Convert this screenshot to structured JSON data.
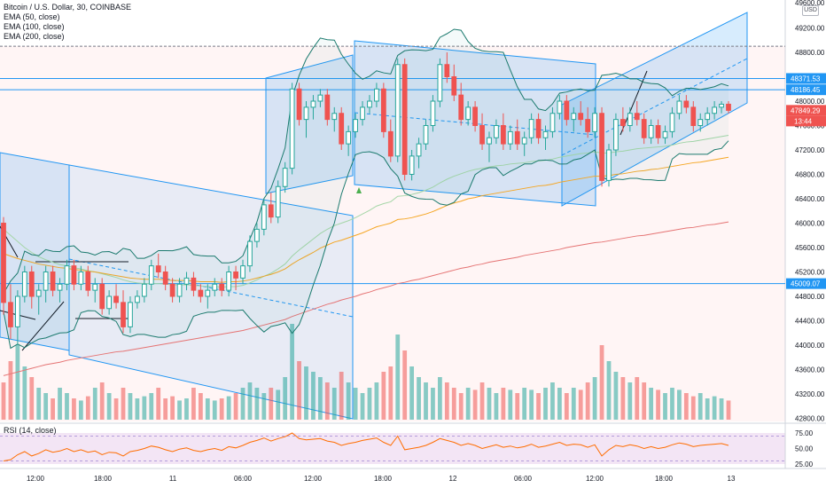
{
  "legend": {
    "title": "Bitcoin / U.S. Dollar, 30, COINBASE",
    "ema50": "EMA (50, close)",
    "ema100": "EMA (100, close)",
    "ema200": "EMA (200, close)"
  },
  "rsi": {
    "label": "RSI (14, close)"
  },
  "currency_badge": "USD",
  "colors": {
    "up": "#26a69a",
    "down": "#ef5350",
    "ema50": "#a5d6a7",
    "ema100": "#f5a623",
    "ema200": "#e57373",
    "channel": "#2196f3",
    "rsi_line": "#ff6d00",
    "rsi_band": "#e1bee7"
  },
  "chart_data": {
    "type": "candlestick",
    "y_axis_ticks": [
      42800,
      43200,
      43600,
      44000,
      44400,
      44800,
      45200,
      45600,
      46000,
      46400,
      46800,
      47200,
      47600,
      48000,
      48400,
      48800,
      49200,
      49600
    ],
    "y_axis_top_label": "49600.00",
    "x_axis_ticks": [
      "12:00",
      "18:00",
      "11",
      "06:00",
      "12:00",
      "18:00",
      "12",
      "06:00",
      "12:00",
      "18:00",
      "13"
    ],
    "price_labels": [
      {
        "value": 48371.53,
        "text": "48371.53",
        "color": "#2196f3"
      },
      {
        "value": 48186.45,
        "text": "48186.45",
        "color": "#2196f3"
      },
      {
        "value": 47849.29,
        "text": "47849.29",
        "color": "#ef5350"
      },
      {
        "value": 45009.07,
        "text": "45009.07",
        "color": "#2196f3"
      }
    ],
    "countdown": "13:44",
    "horizontal_lines": [
      48900,
      48371.53,
      48186.45,
      45009.07
    ],
    "rsi_ticks": [
      "75.00",
      "50.00",
      "25.00"
    ],
    "rsi_band": [
      30,
      70
    ],
    "candles": [
      [
        46000,
        46100,
        44500,
        44700
      ],
      [
        44700,
        45000,
        44100,
        44300
      ],
      [
        44300,
        44900,
        44000,
        44800
      ],
      [
        44800,
        45300,
        44700,
        45200
      ],
      [
        45200,
        45300,
        44600,
        44800
      ],
      [
        44800,
        45000,
        44500,
        44900
      ],
      [
        44900,
        45300,
        44700,
        45200
      ],
      [
        45200,
        45300,
        44800,
        44900
      ],
      [
        44900,
        45100,
        44700,
        45000
      ],
      [
        45000,
        45400,
        44900,
        45300
      ],
      [
        45300,
        45400,
        44900,
        45000
      ],
      [
        45000,
        45300,
        44900,
        45200
      ],
      [
        45200,
        45300,
        44800,
        44900
      ],
      [
        44900,
        45100,
        44700,
        45000
      ],
      [
        45000,
        45100,
        44500,
        44600
      ],
      [
        44600,
        44900,
        44500,
        44800
      ],
      [
        44800,
        45000,
        44600,
        44700
      ],
      [
        44700,
        44900,
        44200,
        44300
      ],
      [
        44300,
        44800,
        44200,
        44700
      ],
      [
        44700,
        44900,
        44600,
        44800
      ],
      [
        44800,
        45100,
        44700,
        45000
      ],
      [
        45000,
        45400,
        44900,
        45300
      ],
      [
        45300,
        45500,
        45100,
        45200
      ],
      [
        45200,
        45300,
        44900,
        45000
      ],
      [
        45000,
        45100,
        44700,
        44800
      ],
      [
        44800,
        45100,
        44700,
        45000
      ],
      [
        45000,
        45200,
        44900,
        45100
      ],
      [
        45100,
        45200,
        44800,
        44900
      ],
      [
        44900,
        45000,
        44700,
        44800
      ],
      [
        44800,
        45000,
        44600,
        44900
      ],
      [
        44900,
        45100,
        44800,
        45000
      ],
      [
        45000,
        45100,
        44800,
        44900
      ],
      [
        44900,
        45300,
        44800,
        45200
      ],
      [
        45200,
        45300,
        44900,
        45100
      ],
      [
        45100,
        45400,
        45000,
        45300
      ],
      [
        45300,
        45800,
        45200,
        45700
      ],
      [
        45700,
        46000,
        45600,
        45900
      ],
      [
        45900,
        46400,
        45800,
        46300
      ],
      [
        46300,
        46500,
        46000,
        46100
      ],
      [
        46100,
        46700,
        46000,
        46600
      ],
      [
        46600,
        47000,
        46500,
        46900
      ],
      [
        46900,
        48300,
        46800,
        48200
      ],
      [
        48200,
        48300,
        47600,
        47700
      ],
      [
        47700,
        48000,
        47400,
        47900
      ],
      [
        47900,
        48100,
        47700,
        48000
      ],
      [
        48000,
        48200,
        47900,
        48100
      ],
      [
        48100,
        48200,
        47600,
        47700
      ],
      [
        47700,
        47900,
        47500,
        47800
      ],
      [
        47800,
        47900,
        47200,
        47300
      ],
      [
        47300,
        47600,
        47100,
        47500
      ],
      [
        47500,
        47800,
        47400,
        47700
      ],
      [
        47700,
        48000,
        47600,
        47900
      ],
      [
        47900,
        48100,
        47800,
        48000
      ],
      [
        48000,
        48300,
        47900,
        48200
      ],
      [
        48200,
        48300,
        47400,
        47500
      ],
      [
        47500,
        47700,
        47000,
        47100
      ],
      [
        47100,
        48700,
        47000,
        48600
      ],
      [
        48600,
        48700,
        46700,
        46800
      ],
      [
        46800,
        47200,
        46700,
        47100
      ],
      [
        47100,
        47400,
        46900,
        47300
      ],
      [
        47300,
        47700,
        47200,
        47600
      ],
      [
        47600,
        48100,
        47500,
        48000
      ],
      [
        48000,
        48700,
        47900,
        48600
      ],
      [
        48600,
        48800,
        48300,
        48400
      ],
      [
        48400,
        48600,
        48000,
        48100
      ],
      [
        48100,
        48300,
        47600,
        47700
      ],
      [
        47700,
        48000,
        47600,
        47900
      ],
      [
        47900,
        48000,
        47500,
        47600
      ],
      [
        47600,
        47800,
        47200,
        47300
      ],
      [
        47300,
        47500,
        47000,
        47400
      ],
      [
        47400,
        47700,
        47300,
        47600
      ],
      [
        47600,
        47800,
        47200,
        47300
      ],
      [
        47300,
        47600,
        47200,
        47500
      ],
      [
        47500,
        47700,
        47200,
        47300
      ],
      [
        47300,
        47500,
        47100,
        47400
      ],
      [
        47400,
        47800,
        47300,
        47700
      ],
      [
        47700,
        47800,
        47300,
        47400
      ],
      [
        47400,
        47600,
        47200,
        47500
      ],
      [
        47500,
        47900,
        47400,
        47800
      ],
      [
        47800,
        48100,
        47700,
        48000
      ],
      [
        48000,
        48100,
        47600,
        47700
      ],
      [
        47700,
        47900,
        47500,
        47800
      ],
      [
        47800,
        48000,
        47600,
        47700
      ],
      [
        47700,
        47900,
        47400,
        47500
      ],
      [
        47500,
        47900,
        47400,
        47800
      ],
      [
        47800,
        47900,
        46600,
        46700
      ],
      [
        46700,
        47300,
        46600,
        47200
      ],
      [
        47200,
        47800,
        47100,
        47700
      ],
      [
        47700,
        47900,
        47500,
        47600
      ],
      [
        47600,
        47900,
        47500,
        47800
      ],
      [
        47800,
        48000,
        47600,
        47700
      ],
      [
        47700,
        47800,
        47300,
        47400
      ],
      [
        47400,
        47700,
        47300,
        47600
      ],
      [
        47600,
        47700,
        47300,
        47400
      ],
      [
        47400,
        47600,
        47300,
        47500
      ],
      [
        47500,
        47900,
        47400,
        47800
      ],
      [
        47800,
        48100,
        47700,
        48000
      ],
      [
        48000,
        48100,
        47800,
        47900
      ],
      [
        47900,
        48000,
        47500,
        47600
      ],
      [
        47600,
        47800,
        47500,
        47700
      ],
      [
        47700,
        47900,
        47600,
        47800
      ],
      [
        47800,
        48000,
        47700,
        47900
      ],
      [
        47900,
        48000,
        47800,
        47950
      ],
      [
        47950,
        48000,
        47800,
        47849
      ]
    ],
    "volume": [
      0.35,
      0.55,
      0.7,
      0.5,
      0.4,
      0.3,
      0.25,
      0.2,
      0.3,
      0.25,
      0.2,
      0.18,
      0.22,
      0.3,
      0.35,
      0.25,
      0.2,
      0.3,
      0.25,
      0.2,
      0.22,
      0.25,
      0.3,
      0.2,
      0.22,
      0.18,
      0.2,
      0.3,
      0.25,
      0.2,
      0.18,
      0.2,
      0.22,
      0.25,
      0.3,
      0.35,
      0.3,
      0.25,
      0.3,
      0.28,
      0.4,
      0.9,
      0.55,
      0.5,
      0.45,
      0.4,
      0.35,
      0.3,
      0.45,
      0.35,
      0.3,
      0.25,
      0.3,
      0.35,
      0.45,
      0.5,
      0.8,
      0.65,
      0.5,
      0.4,
      0.35,
      0.3,
      0.4,
      0.35,
      0.3,
      0.25,
      0.3,
      0.28,
      0.35,
      0.3,
      0.25,
      0.3,
      0.28,
      0.25,
      0.3,
      0.28,
      0.25,
      0.3,
      0.35,
      0.3,
      0.25,
      0.3,
      0.28,
      0.35,
      0.4,
      0.7,
      0.55,
      0.45,
      0.4,
      0.35,
      0.4,
      0.35,
      0.3,
      0.28,
      0.25,
      0.3,
      0.28,
      0.25,
      0.22,
      0.25,
      0.2,
      0.22,
      0.2,
      0.18
    ],
    "rsi": [
      30,
      32,
      40,
      45,
      38,
      42,
      48,
      44,
      46,
      50,
      45,
      48,
      44,
      46,
      40,
      44,
      43,
      38,
      45,
      47,
      50,
      54,
      52,
      48,
      45,
      49,
      51,
      47,
      45,
      48,
      50,
      47,
      53,
      51,
      55,
      60,
      63,
      67,
      62,
      66,
      69,
      75,
      66,
      64,
      65,
      66,
      62,
      60,
      55,
      58,
      60,
      63,
      65,
      67,
      60,
      55,
      70,
      48,
      50,
      52,
      55,
      60,
      66,
      63,
      60,
      55,
      58,
      55,
      50,
      53,
      56,
      52,
      54,
      51,
      53,
      57,
      52,
      54,
      57,
      60,
      55,
      57,
      56,
      52,
      56,
      38,
      48,
      55,
      53,
      56,
      54,
      50,
      53,
      50,
      52,
      56,
      59,
      57,
      53,
      55,
      56,
      57,
      58,
      55
    ],
    "ema50": [
      45900,
      45800,
      45700,
      45600,
      45520,
      45450,
      45400,
      45360,
      45320,
      45300,
      45270,
      45250,
      45220,
      45200,
      45170,
      45140,
      45110,
      45070,
      45040,
      45020,
      45010,
      45010,
      45010,
      45000,
      44990,
      44990,
      44990,
      44980,
      44970,
      44960,
      44960,
      44950,
      44960,
      44960,
      44980,
      45020,
      45070,
      45130,
      45180,
      45250,
      45330,
      45460,
      45560,
      45650,
      45740,
      45830,
      45900,
      45960,
      46000,
      46040,
      46090,
      46150,
      46210,
      46280,
      46320,
      46350,
      46440,
      46450,
      46470,
      46500,
      46540,
      46590,
      46660,
      46720,
      46770,
      46810,
      46850,
      46880,
      46900,
      46920,
      46940,
      46950,
      46970,
      46980,
      46990,
      47010,
      47020,
      47030,
      47050,
      47080,
      47100,
      47120,
      47140,
      47150,
      47170,
      47150,
      47150,
      47170,
      47180,
      47200,
      47220,
      47230,
      47240,
      47250,
      47260,
      47280,
      47310,
      47330,
      47340,
      47360,
      47380,
      47400,
      47420,
      47440
    ],
    "ema100": [
      45500,
      45460,
      45420,
      45390,
      45360,
      45330,
      45310,
      45290,
      45270,
      45260,
      45240,
      45230,
      45210,
      45200,
      45180,
      45160,
      45140,
      45120,
      45100,
      45090,
      45080,
      45080,
      45080,
      45070,
      45060,
      45060,
      45060,
      45050,
      45040,
      45040,
      45040,
      45030,
      45040,
      45040,
      45050,
      45070,
      45100,
      45130,
      45160,
      45200,
      45250,
      45330,
      45400,
      45460,
      45520,
      45590,
      45640,
      45690,
      45720,
      45760,
      45800,
      45840,
      45890,
      45940,
      45970,
      46000,
      46060,
      46070,
      46090,
      46120,
      46150,
      46190,
      46240,
      46290,
      46330,
      46360,
      46400,
      46420,
      46450,
      46470,
      46490,
      46510,
      46530,
      46550,
      46570,
      46590,
      46610,
      46620,
      46640,
      46670,
      46690,
      46710,
      46730,
      46750,
      46770,
      46770,
      46780,
      46800,
      46810,
      46830,
      46850,
      46860,
      46880,
      46890,
      46910,
      46930,
      46950,
      46970,
      46990,
      47000,
      47020,
      47040,
      47060,
      47080
    ],
    "ema200": [
      43500,
      43530,
      43560,
      43590,
      43620,
      43650,
      43680,
      43700,
      43720,
      43750,
      43770,
      43790,
      43810,
      43830,
      43850,
      43870,
      43890,
      43900,
      43920,
      43940,
      43960,
      43980,
      44000,
      44020,
      44040,
      44060,
      44080,
      44100,
      44120,
      44140,
      44160,
      44180,
      44200,
      44220,
      44240,
      44270,
      44300,
      44330,
      44360,
      44390,
      44420,
      44470,
      44510,
      44550,
      44590,
      44630,
      44670,
      44700,
      44740,
      44770,
      44800,
      44840,
      44870,
      44910,
      44940,
      44970,
      45010,
      45030,
      45060,
      45080,
      45110,
      45140,
      45170,
      45200,
      45230,
      45260,
      45280,
      45310,
      45330,
      45360,
      45380,
      45400,
      45420,
      45440,
      45470,
      45490,
      45510,
      45530,
      45550,
      45570,
      45600,
      45620,
      45640,
      45660,
      45680,
      45690,
      45710,
      45730,
      45750,
      45770,
      45790,
      45800,
      45820,
      45840,
      45860,
      45880,
      45900,
      45920,
      45930,
      45950,
      45970,
      45980,
      46000,
      46020
    ]
  }
}
